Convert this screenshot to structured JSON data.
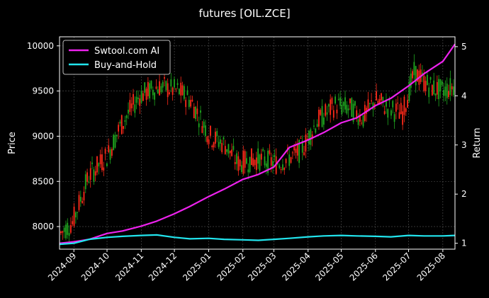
{
  "chart_data": {
    "type": "line",
    "title": "futures [OIL.ZCE]",
    "ylabel_left": "Price",
    "ylabel_right": "Return",
    "ylim_left": [
      7750,
      10100
    ],
    "ylim_right": [
      0.88,
      5.2
    ],
    "yticks_left": [
      8000,
      8500,
      9000,
      9500,
      10000
    ],
    "yticks_right": [
      1,
      2,
      3,
      4,
      5
    ],
    "xticks": [
      "2024-09",
      "2024-10",
      "2024-11",
      "2024-12",
      "2025-01",
      "2025-02",
      "2025-03",
      "2025-04",
      "2025-05",
      "2025-06",
      "2025-07",
      "2025-08"
    ],
    "grid": true,
    "legend_position": "top-left",
    "candle_colors": {
      "up": "#ff2a1a",
      "down": "#1fa71f"
    },
    "series": [
      {
        "name": "Swtool.com AI",
        "color": "#ee22ee",
        "axis": "right",
        "x": [
          "2024-08-19",
          "2024-09-01",
          "2024-09-15",
          "2024-10-01",
          "2024-10-15",
          "2024-11-01",
          "2024-11-15",
          "2024-12-01",
          "2024-12-15",
          "2025-01-01",
          "2025-01-15",
          "2025-02-01",
          "2025-02-15",
          "2025-03-01",
          "2025-03-15",
          "2025-04-01",
          "2025-04-15",
          "2025-05-01",
          "2025-05-15",
          "2025-06-01",
          "2025-06-15",
          "2025-07-01",
          "2025-07-15",
          "2025-08-01",
          "2025-08-12"
        ],
        "values": [
          1.0,
          1.03,
          1.08,
          1.2,
          1.25,
          1.35,
          1.45,
          1.6,
          1.75,
          1.95,
          2.1,
          2.3,
          2.4,
          2.55,
          2.95,
          3.1,
          3.25,
          3.45,
          3.55,
          3.8,
          3.95,
          4.2,
          4.45,
          4.7,
          5.05
        ]
      },
      {
        "name": "Buy-and-Hold",
        "color": "#22e5ee",
        "axis": "right",
        "x": [
          "2024-08-19",
          "2024-09-01",
          "2024-09-15",
          "2024-10-01",
          "2024-10-15",
          "2024-11-01",
          "2024-11-15",
          "2024-12-01",
          "2024-12-15",
          "2025-01-01",
          "2025-01-15",
          "2025-02-01",
          "2025-02-15",
          "2025-03-01",
          "2025-03-15",
          "2025-04-01",
          "2025-04-15",
          "2025-05-01",
          "2025-05-15",
          "2025-06-01",
          "2025-06-15",
          "2025-07-01",
          "2025-07-15",
          "2025-08-01",
          "2025-08-12"
        ],
        "values": [
          0.98,
          1.0,
          1.08,
          1.12,
          1.14,
          1.16,
          1.17,
          1.12,
          1.09,
          1.1,
          1.08,
          1.07,
          1.06,
          1.08,
          1.1,
          1.13,
          1.15,
          1.16,
          1.15,
          1.14,
          1.13,
          1.16,
          1.15,
          1.15,
          1.16
        ]
      }
    ]
  }
}
